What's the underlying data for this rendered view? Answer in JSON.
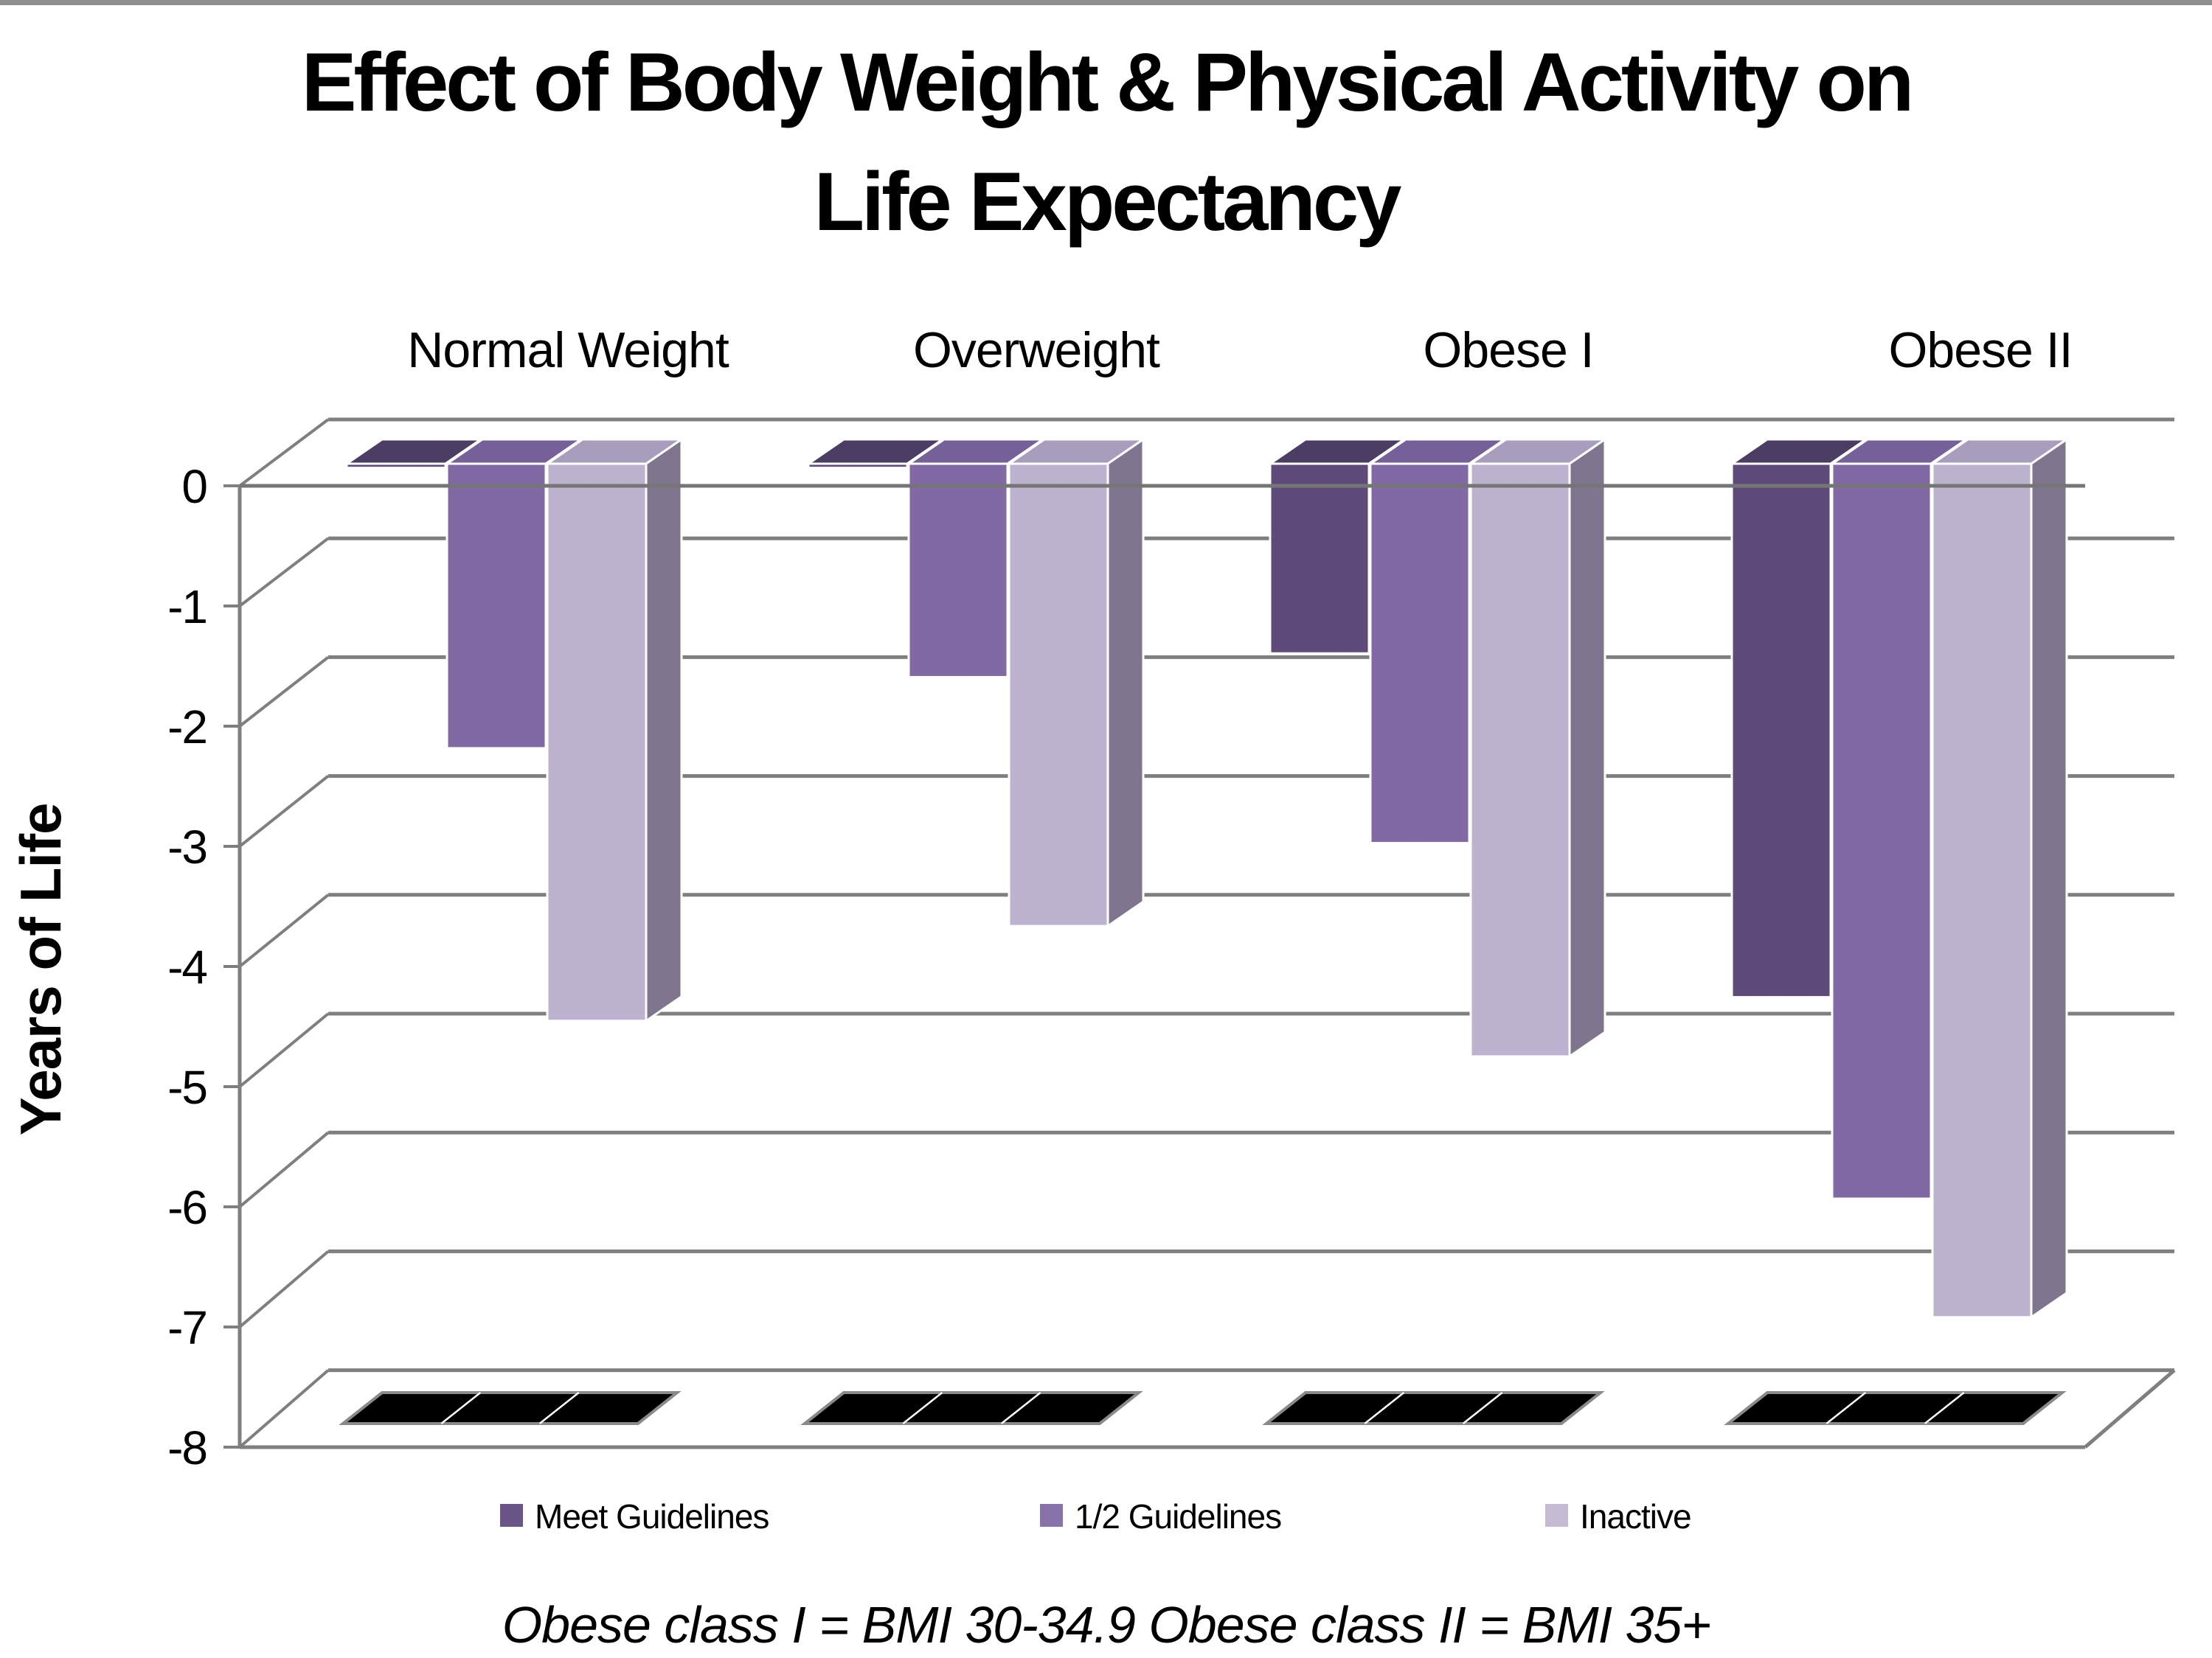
{
  "page": {
    "background_color": "#ffffff",
    "top_border_color": "#8f8f8f"
  },
  "title": {
    "line1": "Effect of Body Weight & Physical Activity on",
    "line2": "Life Expectancy"
  },
  "y_axis": {
    "title": "Years of Life",
    "tick_labels": [
      "0",
      "-1",
      "-2",
      "-3",
      "-4",
      "-5",
      "-6",
      "-7",
      "-8"
    ],
    "max": 0,
    "min": -8
  },
  "footnote": "Obese class I =  BMI 30-34.9  Obese class II = BMI 35+",
  "colors": {
    "gridline": "#7f7f7f",
    "shadow_fill": "#000000",
    "shadow_stroke": "#8a8a8a",
    "face_stroke": "#ffffff"
  },
  "chart_data": {
    "type": "bar",
    "projection": "3d-column",
    "title": "Effect of Body Weight & Physical Activity on Life Expectancy",
    "xlabel": "",
    "ylabel": "Years of Life",
    "ylim": [
      -8,
      0
    ],
    "grid": true,
    "legend_position": "bottom",
    "categories": [
      "Normal Weight",
      "Overweight",
      "Obese I",
      "Obese II"
    ],
    "series": [
      {
        "name": "Meet Guidelines",
        "values": [
          0,
          0,
          -1.6,
          -4.5
        ],
        "front_color": "#5e4b79",
        "top_color": "#4c3d64",
        "side_color": "#544166",
        "legend_color": "#6a5589"
      },
      {
        "name": "1/2 Guidelines",
        "values": [
          -2.4,
          -1.8,
          -3.2,
          -6.2
        ],
        "front_color": "#8169a6",
        "top_color": "#75609a",
        "side_color": "#6f5f85",
        "legend_color": "#8772ac"
      },
      {
        "name": "Inactive",
        "values": [
          -4.7,
          -3.9,
          -5.0,
          -7.2
        ],
        "front_color": "#bdb2cf",
        "top_color": "#a89dbc",
        "side_color": "#80758f",
        "legend_color": "#c4bad4"
      }
    ]
  }
}
